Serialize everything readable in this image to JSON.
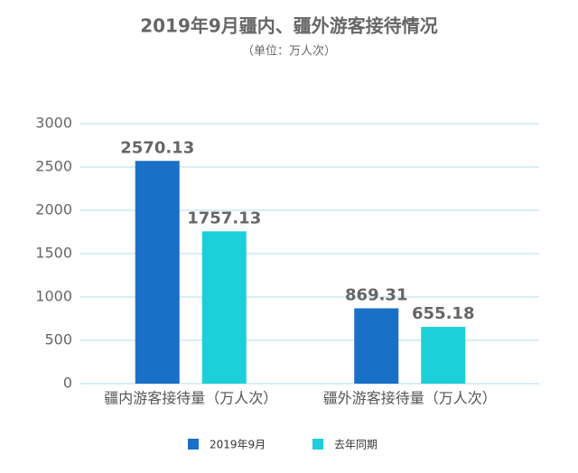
{
  "chart_data": {
    "type": "bar",
    "title": "2019年9月疆内、疆外游客接待情况",
    "subtitle": "（单位：万人次）",
    "categories": [
      "疆内游客接待量（万人次）",
      "疆外游客接待量（万人次）"
    ],
    "series": [
      {
        "name": "2019年9月",
        "color": "#1a6fc6",
        "values": [
          2570.13,
          869.31
        ]
      },
      {
        "name": "去年同期",
        "color": "#1ccfd8",
        "values": [
          1757.13,
          655.18
        ]
      }
    ],
    "ylim": [
      0,
      3000
    ],
    "yticks": [
      0,
      500,
      1000,
      1500,
      2000,
      2500,
      3000
    ],
    "grid": true,
    "legend": "bottom"
  }
}
